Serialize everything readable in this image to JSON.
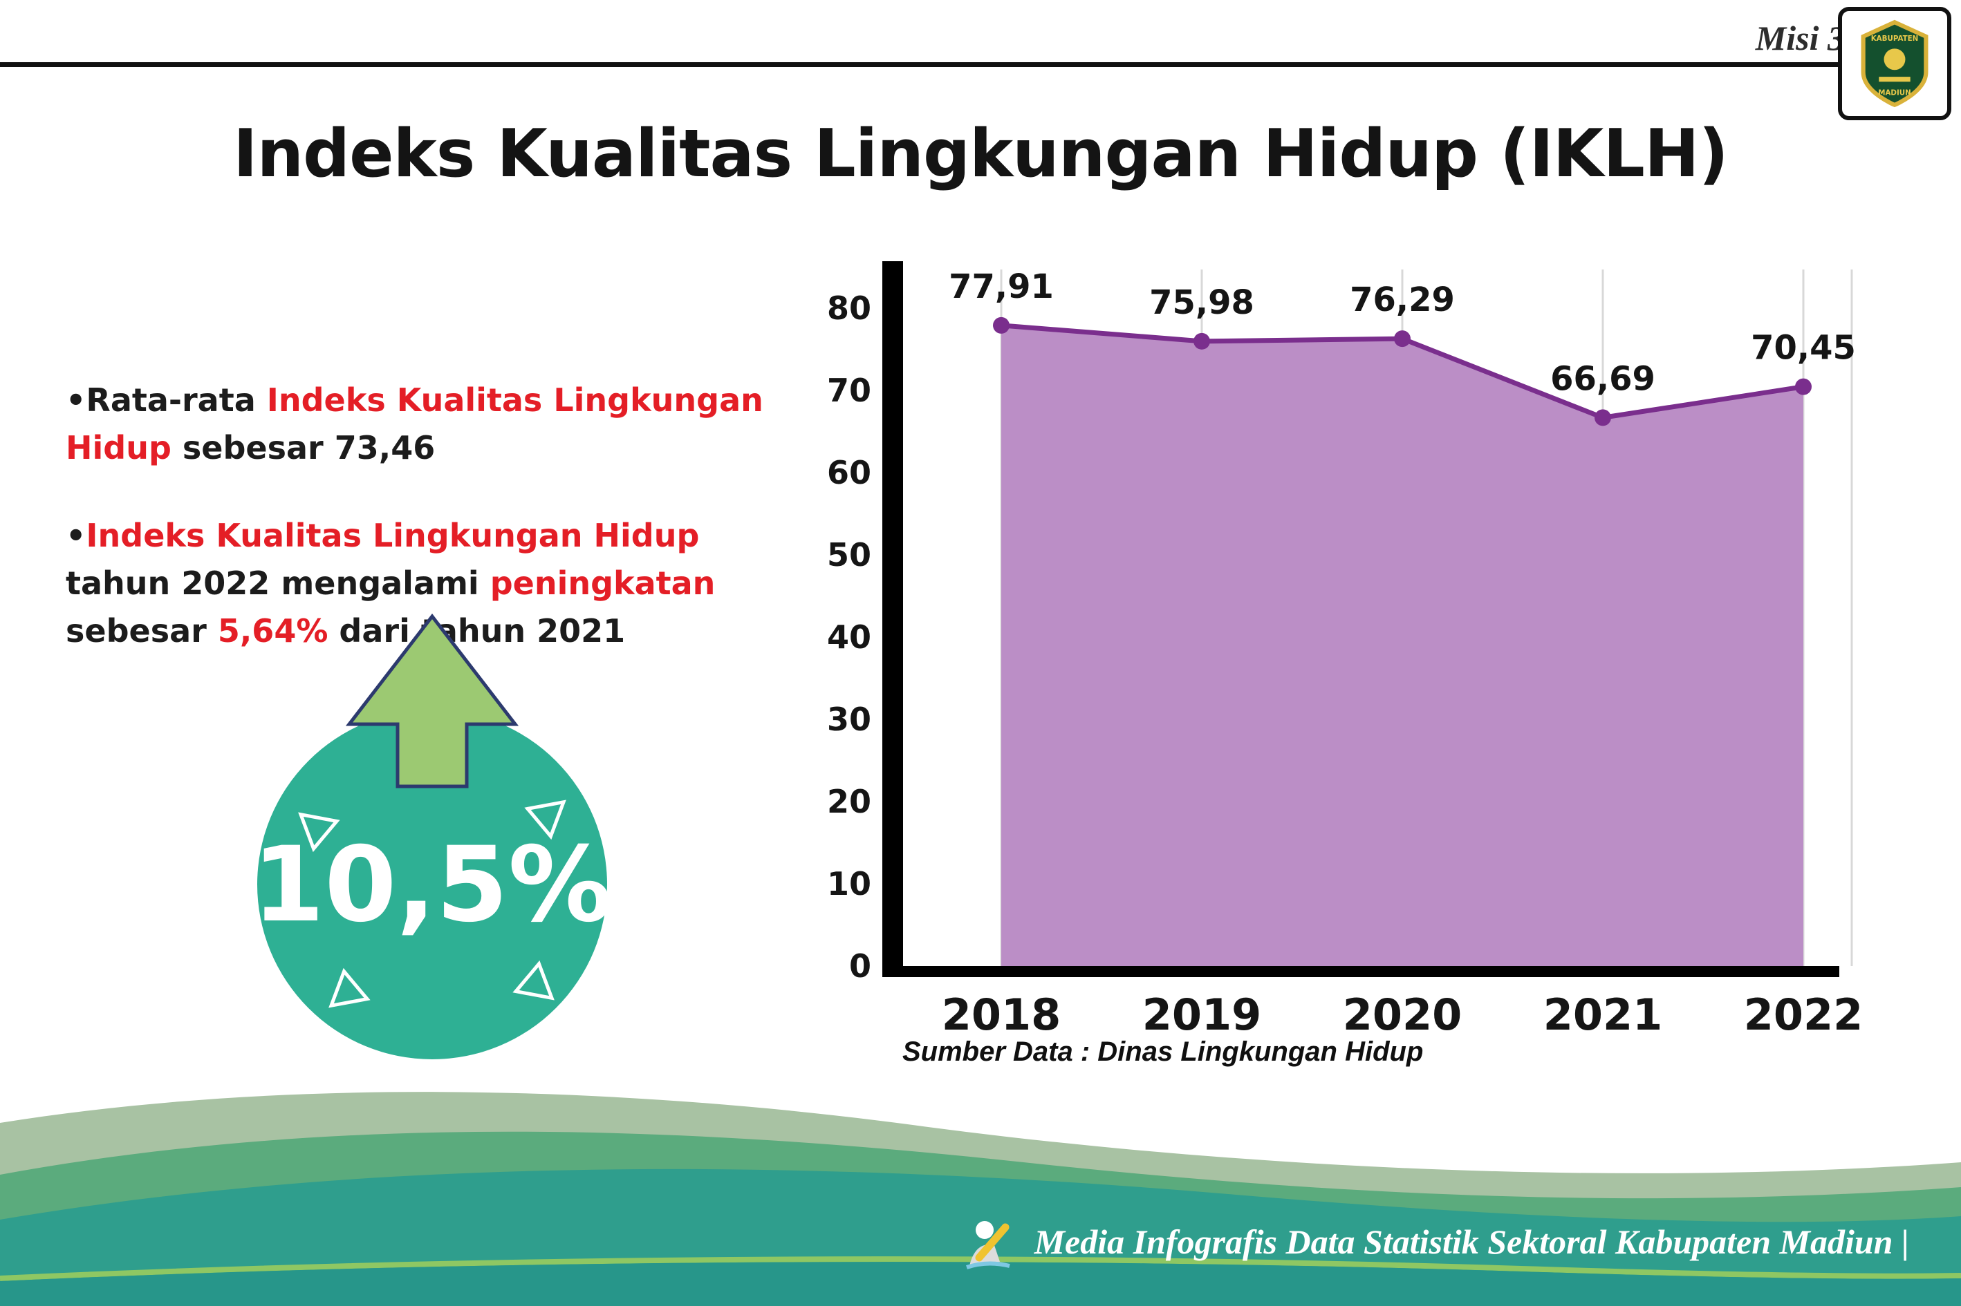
{
  "header": {
    "misi_label": "Misi 3",
    "title": "Indeks Kualitas Lingkungan Hidup (IKLH)"
  },
  "logo": {
    "top_text": "KABUPATEN",
    "bottom_text": "MADIUN"
  },
  "bullets": {
    "b1": [
      {
        "t": "•Rata-rata "
      },
      {
        "t": "Indeks Kualitas Lingkungan Hidup"
      },
      {
        "t": " sebesar 73,46"
      }
    ],
    "b2": [
      {
        "t": "•"
      },
      {
        "t": "Indeks Kualitas Lingkungan Hidup"
      },
      {
        "t": " tahun 2022 mengalami "
      },
      {
        "t": "peningkatan"
      },
      {
        "t": " sebesar "
      },
      {
        "t": "5,64%"
      },
      {
        "t": " dari tahun 2021"
      }
    ]
  },
  "badge": {
    "value": "10,5%",
    "circle_color": "#2eb094",
    "arrow_color": "#9cc972"
  },
  "chart_data": {
    "type": "area",
    "categories": [
      "2018",
      "2019",
      "2020",
      "2021",
      "2022"
    ],
    "values": [
      77.91,
      75.98,
      76.29,
      66.69,
      70.45
    ],
    "labels": [
      "77,91",
      "75,98",
      "76,29",
      "66,69",
      "70,45"
    ],
    "title": "",
    "xlabel": "",
    "ylabel": "",
    "ylim": [
      0,
      80
    ],
    "yticks": [
      0,
      10,
      20,
      30,
      40,
      50,
      60,
      70,
      80
    ],
    "grid": "vertical",
    "legend": "none",
    "area_color": "#bb8ec6",
    "line_color": "#7a2e8d",
    "marker_color": "#7a2e8d"
  },
  "chart_source": "Sumber Data : Dinas Lingkungan Hidup",
  "footer": {
    "credit": "Media Infografis Data Statistik Sektoral Kabupaten Madiun |"
  }
}
